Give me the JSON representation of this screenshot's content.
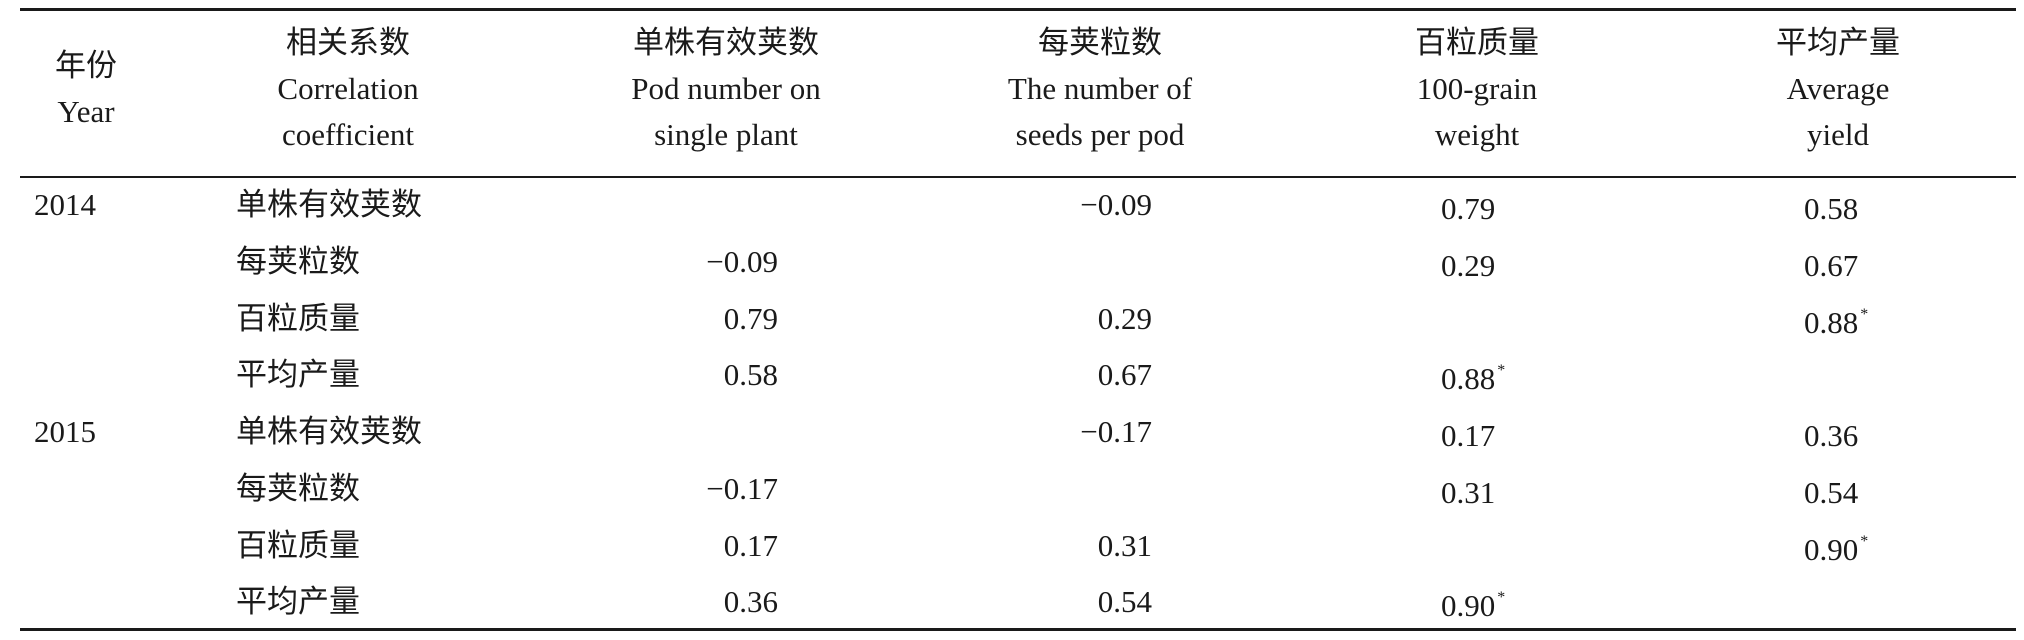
{
  "headers": [
    {
      "zh": "年份",
      "en1": "Year",
      "en2": ""
    },
    {
      "zh": "相关系数",
      "en1": "Correlation",
      "en2": "coefficient"
    },
    {
      "zh": "单株有效荚数",
      "en1": "Pod number on",
      "en2": "single plant"
    },
    {
      "zh": "每荚粒数",
      "en1": "The number of",
      "en2": "seeds per pod"
    },
    {
      "zh": "百粒质量",
      "en1": "100-grain",
      "en2": "weight"
    },
    {
      "zh": "平均产量",
      "en1": "Average",
      "en2": "yield"
    }
  ],
  "rows": [
    {
      "year": "2014",
      "trait": "单株有效荚数",
      "c1": "",
      "c2": "−0.09",
      "c3": "0.79",
      "c4": "0.58",
      "s3": "",
      "s4": ""
    },
    {
      "year": "",
      "trait": "每荚粒数",
      "c1": "−0.09",
      "c2": "",
      "c3": "0.29",
      "c4": "0.67",
      "s3": "",
      "s4": ""
    },
    {
      "year": "",
      "trait": "百粒质量",
      "c1": "0.79",
      "c2": "0.29",
      "c3": "",
      "c4": "0.88",
      "s3": "",
      "s4": "*"
    },
    {
      "year": "",
      "trait": "平均产量",
      "c1": "0.58",
      "c2": "0.67",
      "c3": "0.88",
      "c4": "",
      "s3": "*",
      "s4": ""
    },
    {
      "year": "2015",
      "trait": "单株有效荚数",
      "c1": "",
      "c2": "−0.17",
      "c3": "0.17",
      "c4": "0.36",
      "s3": "",
      "s4": ""
    },
    {
      "year": "",
      "trait": "每荚粒数",
      "c1": "−0.17",
      "c2": "",
      "c3": "0.31",
      "c4": "0.54",
      "s3": "",
      "s4": ""
    },
    {
      "year": "",
      "trait": "百粒质量",
      "c1": "0.17",
      "c2": "0.31",
      "c3": "",
      "c4": "0.90",
      "s3": "",
      "s4": "*"
    },
    {
      "year": "",
      "trait": "平均产量",
      "c1": "0.36",
      "c2": "0.54",
      "c3": "0.90",
      "c4": "",
      "s3": "*",
      "s4": ""
    }
  ]
}
